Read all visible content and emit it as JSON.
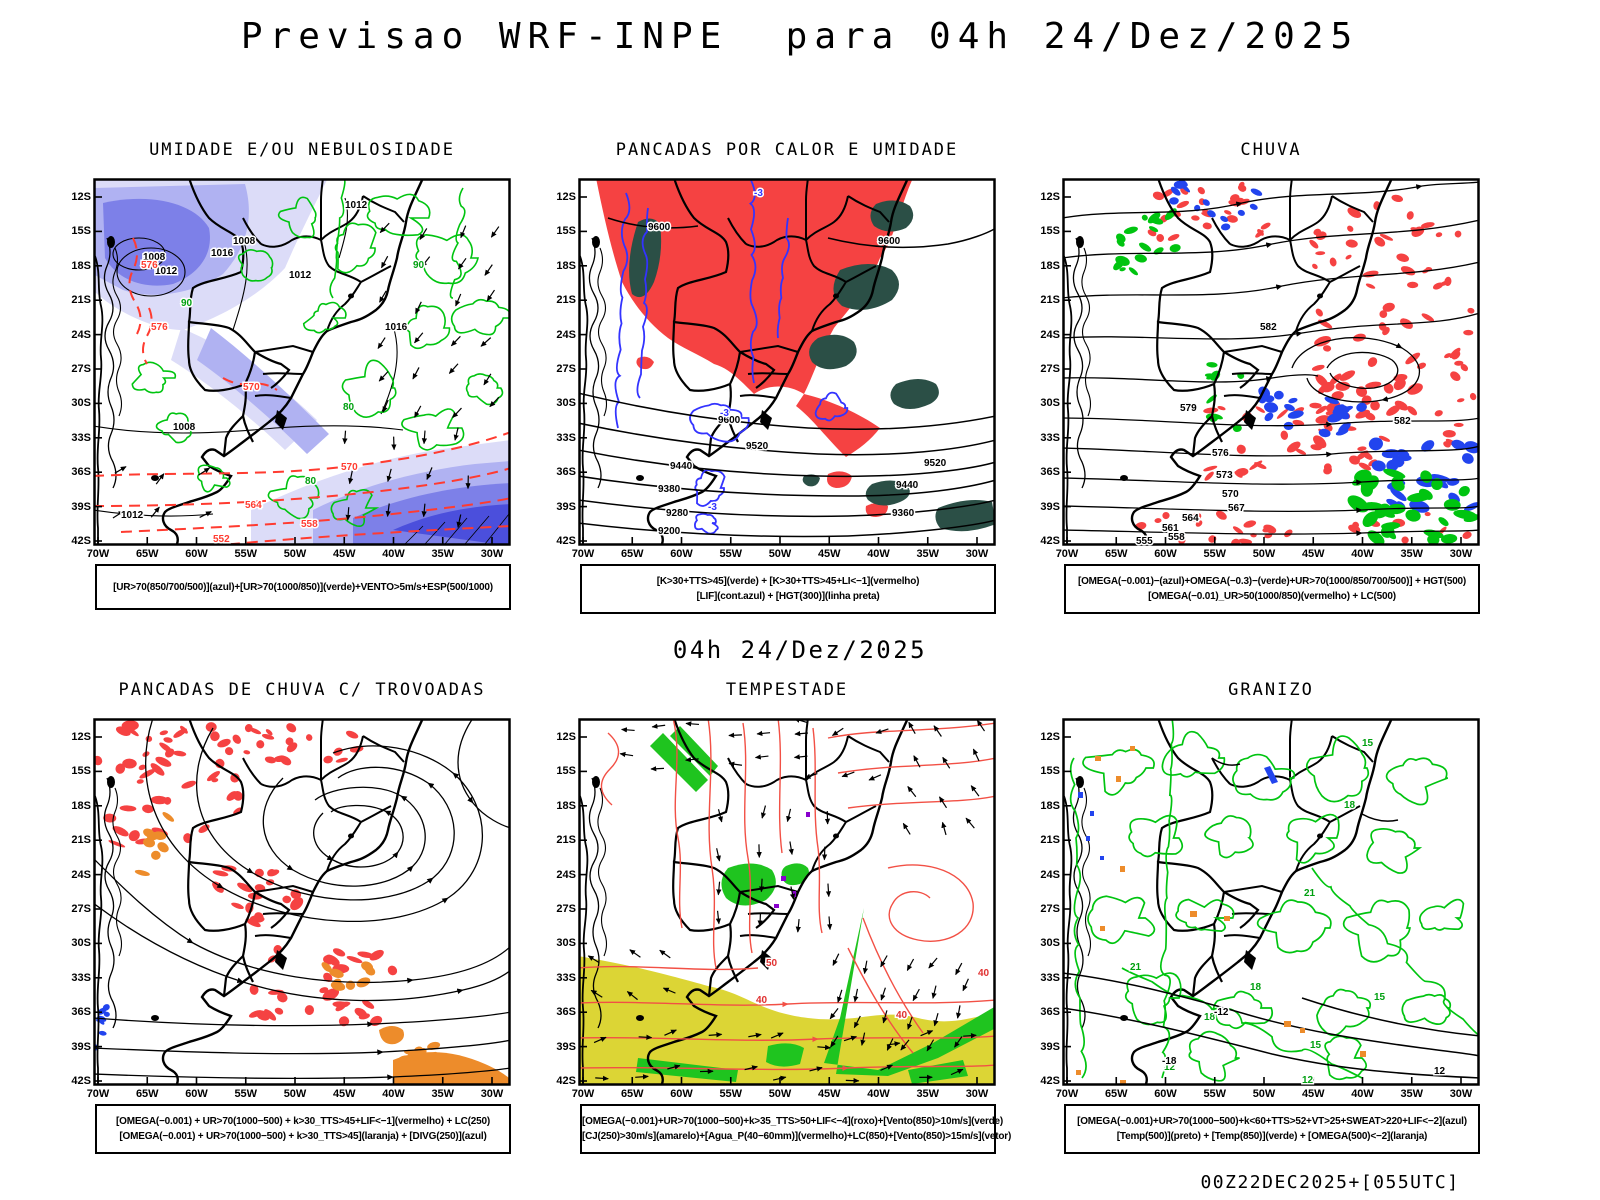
{
  "page": {
    "title": "Previsao WRF-INPE  para 04h 24/Dez/2025",
    "mid_date": "04h 24/Dez/2025",
    "footer": "00Z22DEC2025+[055UTC]"
  },
  "axes": {
    "lat": [
      "12S",
      "15S",
      "18S",
      "21S",
      "24S",
      "27S",
      "30S",
      "33S",
      "36S",
      "39S",
      "42S"
    ],
    "lon": [
      "70W",
      "65W",
      "60W",
      "55W",
      "50W",
      "45W",
      "40W",
      "35W",
      "30W"
    ]
  },
  "colors": {
    "red_fill": "#f54242",
    "dark_teal": "#2b4f46",
    "blue_patch": "#2244ee",
    "blue_contour": "#3333ff",
    "green": "#00c410",
    "yellow": "#dcd535",
    "orange": "#ed8c2b",
    "salmon_stream": "#f25045",
    "red_dashed": "#ff3b30",
    "purple": "#8800cc",
    "shading_blues": [
      "#dcdcf8",
      "#b0b2f2",
      "#7d80e8",
      "#4b4fdc"
    ]
  },
  "panels": [
    {
      "title": "UMIDADE E/OU NEBULOSIDADE",
      "caption_lines": [
        "[UR>70(850/700/500)](azul)+[UR>70(1000/850)](verde)+VENTO>5m/s+ESP(500/1000)",
        ""
      ],
      "labels": {
        "black": [
          "1016",
          "1012",
          "1008",
          "1008",
          "1012",
          "1008",
          "1012",
          "1016",
          "1012"
        ],
        "red": [
          "576",
          "576",
          "570",
          "570",
          "564",
          "558",
          "552"
        ],
        "green": [
          "90",
          "80",
          "90",
          "80"
        ]
      }
    },
    {
      "title": "PANCADAS POR CALOR E UMIDADE",
      "caption_lines": [
        "[K>30+TTS>45](verde) + [K>30+TTS>45+LI<−1](vermelho)",
        "[LIF](cont.azul) + [HGT(300)](linha preta)"
      ],
      "labels": {
        "black": [
          "9600",
          "9600",
          "9600",
          "9520",
          "9440",
          "9380",
          "9280",
          "9200",
          "9520",
          "9440",
          "9360"
        ],
        "blue": [
          "-3",
          "-3",
          "-3"
        ]
      }
    },
    {
      "title": "CHUVA",
      "caption_lines": [
        "[OMEGA(−0.001)−(azul)+OMEGA(−0.3)−(verde)+UR>70(1000/850/700/500)] + HGT(500)",
        "[OMEGA(−0.01)_UR>50(1000/850)(vermelho) + LC(500)"
      ],
      "labels": {
        "black": [
          "582",
          "582",
          "579",
          "576",
          "573",
          "570",
          "567",
          "564",
          "561",
          "558",
          "555"
        ]
      }
    },
    {
      "title": "PANCADAS DE CHUVA C/ TROVOADAS",
      "caption_lines": [
        "[OMEGA(−0.001) + UR>70(1000−500) + k>30_TTS>45+LIF<−1](vermelho) + LC(250)",
        "[OMEGA(−0.001) + UR>70(1000−500) + k>30_TTS>45](laranja) + [DIVG(250)](azul)"
      ],
      "labels": {}
    },
    {
      "title": "TEMPESTADE",
      "caption_lines": [
        "[OMEGA(−0.001)+UR>70(1000−500)+k>35_TTS>50+LIF<−4](roxo)+[Vento(850)>10m/s](verde)",
        "[CJ(250)>30m/s](amarelo)+[Agua_P(40−60mm)](vermelho)+LC(850)+[Vento(850)>15m/s](vetor)"
      ],
      "labels": {
        "red": [
          "50",
          "40",
          "40",
          "40"
        ]
      }
    },
    {
      "title": "GRANIZO",
      "caption_lines": [
        "[OMEGA(−0.001)+UR>70(1000−500)+k<60+TTS>52+VT>25+SWEAT>220+LIF<−2](azul)",
        "[Temp(500)](preto) + [Temp(850)](verde) + [OMEGA(500)<−2](laranja)"
      ],
      "labels": {
        "green": [
          "15",
          "18",
          "21",
          "21",
          "18",
          "15",
          "18",
          "12",
          "15",
          "12"
        ],
        "black": [
          "-12",
          "-18",
          "12"
        ]
      }
    }
  ]
}
